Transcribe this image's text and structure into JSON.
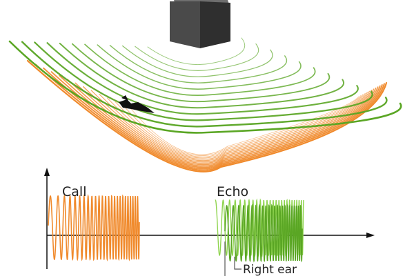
{
  "labels": {
    "call": "Call",
    "echo": "Echo",
    "right_ear": "Right ear"
  },
  "icons": {
    "bat": "bat-icon",
    "object": "cube-icon"
  },
  "colors": {
    "call_wave": "#f08a2c",
    "echo_wave": "#5aa624",
    "echo_wave_light": "#8fd44f",
    "cube_front": "#4a4a4a",
    "cube_top": "#6e6e6e",
    "cube_side": "#2f2f2f",
    "axis": "#111111"
  }
}
